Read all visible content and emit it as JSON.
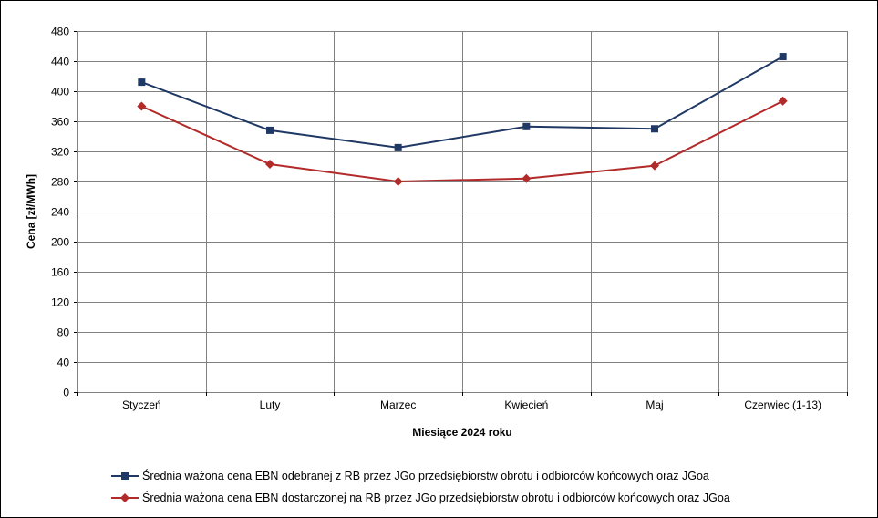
{
  "chart_data": {
    "type": "line",
    "title": "",
    "xlabel": "Miesiące 2024  roku",
    "ylabel": "Cena [zł/MWh]",
    "categories": [
      "Styczeń",
      "Luty",
      "Marzec",
      "Kwiecień",
      "Maj",
      "Czerwiec (1-13)"
    ],
    "ylim": [
      0,
      480
    ],
    "yticks": [
      0,
      40,
      80,
      120,
      160,
      200,
      240,
      280,
      320,
      360,
      400,
      440,
      480
    ],
    "grid": true,
    "legend_position": "bottom",
    "series": [
      {
        "name": "Średnia ważona cena EBN odebranej z RB przez JGo przedsiębiorstw obrotu i odbiorców końcowych oraz JGoa",
        "values": [
          412,
          348,
          325,
          353,
          350,
          446
        ],
        "color": "#1f3864",
        "marker": "square"
      },
      {
        "name": "Średnia ważona cena EBN dostarczonej na RB przez JGo przedsiębiorstw obrotu i odbiorców końcowych oraz JGoa",
        "values": [
          380,
          303,
          280,
          284,
          301,
          387
        ],
        "color": "#b22a2a",
        "marker": "diamond"
      }
    ]
  }
}
